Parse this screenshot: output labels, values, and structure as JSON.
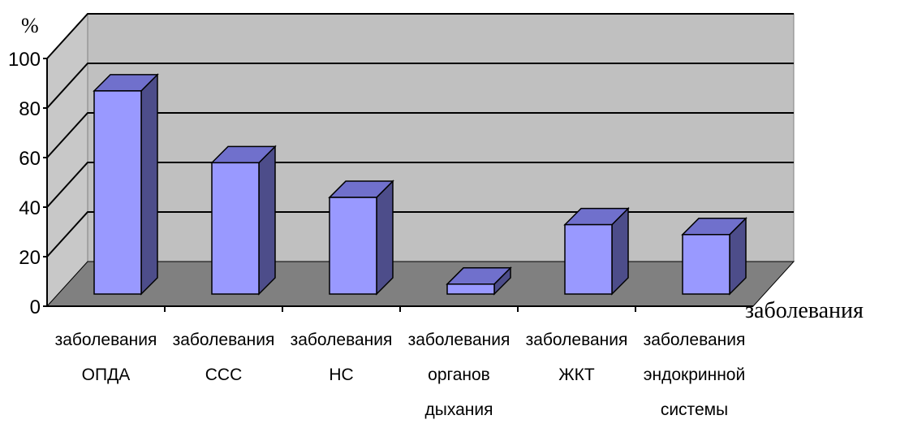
{
  "chart_data": {
    "type": "bar",
    "categories": [
      [
        "заболевания",
        "ОПДА"
      ],
      [
        "заболевания",
        "ССС"
      ],
      [
        "заболевания",
        "НС"
      ],
      [
        "заболевания",
        "органов",
        "дыхания"
      ],
      [
        "заболевания",
        "ЖКТ"
      ],
      [
        "заболевания",
        "эндокринной",
        "системы"
      ]
    ],
    "values": [
      82,
      53,
      39,
      4,
      28,
      24
    ],
    "title": "",
    "xlabel": "заболевания",
    "ylabel": "%",
    "ylim": [
      0,
      100
    ],
    "yticks": [
      0,
      20,
      40,
      60,
      80,
      100
    ],
    "grid": true,
    "style": "3d-column",
    "colors": {
      "bar_front": "#9999ff",
      "bar_top": "#7070cc",
      "bar_side": "#4d4d8a",
      "back_wall": "#c0c0c0",
      "side_wall": "#c8c8c8",
      "floor": "#808080",
      "gridline": "#000000"
    }
  }
}
